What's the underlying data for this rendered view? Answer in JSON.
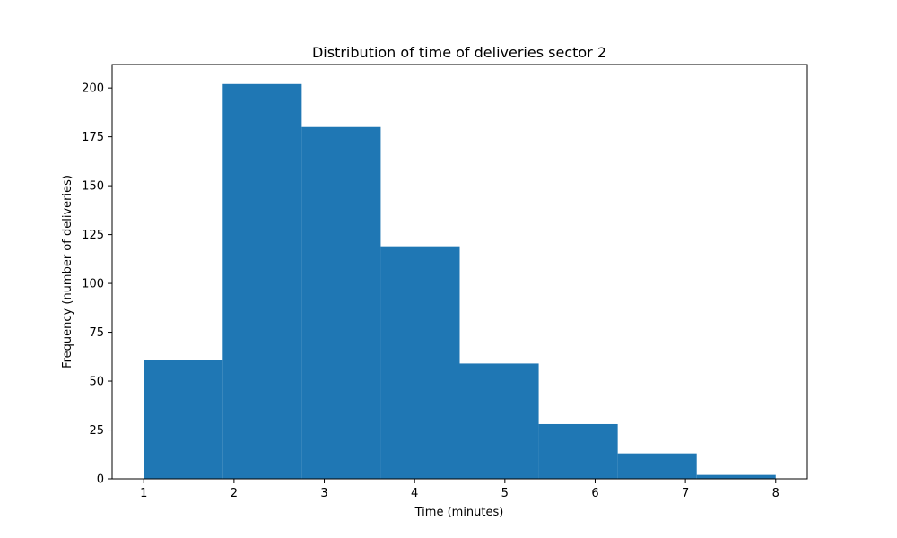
{
  "chart_data": {
    "type": "histogram",
    "title": "Distribution of time of deliveries sector 2",
    "xlabel": "Time (minutes)",
    "ylabel": "Frequency (number of deliveries)",
    "bin_edges": [
      1.0,
      1.875,
      2.75,
      3.625,
      4.5,
      5.375,
      6.25,
      7.125,
      8.0
    ],
    "values": [
      61,
      202,
      180,
      119,
      59,
      28,
      13,
      2
    ],
    "xlim": [
      0.65,
      8.35
    ],
    "ylim": [
      0,
      212
    ],
    "xticks": [
      1,
      2,
      3,
      4,
      5,
      6,
      7,
      8
    ],
    "yticks": [
      0,
      25,
      50,
      75,
      100,
      125,
      150,
      175,
      200
    ],
    "bar_color": "#1f77b4",
    "grid": false,
    "legend": "none"
  }
}
